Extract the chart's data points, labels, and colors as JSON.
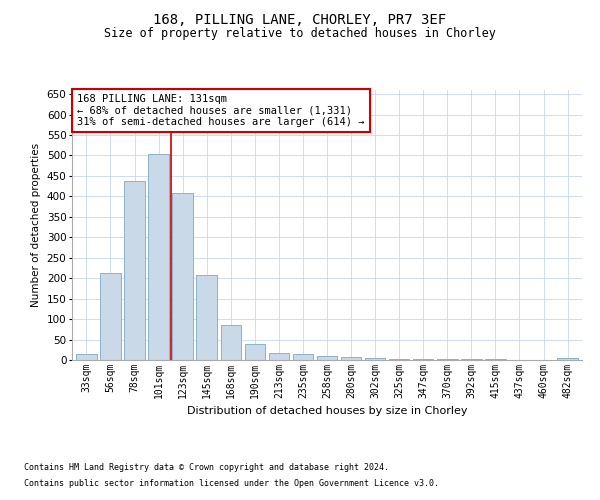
{
  "title_line1": "168, PILLING LANE, CHORLEY, PR7 3EF",
  "title_line2": "Size of property relative to detached houses in Chorley",
  "xlabel": "Distribution of detached houses by size in Chorley",
  "ylabel": "Number of detached properties",
  "categories": [
    "33sqm",
    "56sqm",
    "78sqm",
    "101sqm",
    "123sqm",
    "145sqm",
    "168sqm",
    "190sqm",
    "213sqm",
    "235sqm",
    "258sqm",
    "280sqm",
    "302sqm",
    "325sqm",
    "347sqm",
    "370sqm",
    "392sqm",
    "415sqm",
    "437sqm",
    "460sqm",
    "482sqm"
  ],
  "values": [
    15,
    213,
    437,
    503,
    408,
    207,
    85,
    38,
    17,
    15,
    11,
    8,
    5,
    3,
    3,
    3,
    3,
    2,
    1,
    1,
    4
  ],
  "bar_color": "#c9d9e8",
  "bar_edge_color": "#7aaac8",
  "annotation_text": "168 PILLING LANE: 131sqm\n← 68% of detached houses are smaller (1,331)\n31% of semi-detached houses are larger (614) →",
  "annotation_box_color": "#ffffff",
  "annotation_box_edge_color": "#cc0000",
  "red_line_color": "#cc0000",
  "ylim": [
    0,
    660
  ],
  "yticks": [
    0,
    50,
    100,
    150,
    200,
    250,
    300,
    350,
    400,
    450,
    500,
    550,
    600,
    650
  ],
  "footer_line1": "Contains HM Land Registry data © Crown copyright and database right 2024.",
  "footer_line2": "Contains public sector information licensed under the Open Government Licence v3.0.",
  "background_color": "#ffffff",
  "grid_color": "#c8d8eb"
}
